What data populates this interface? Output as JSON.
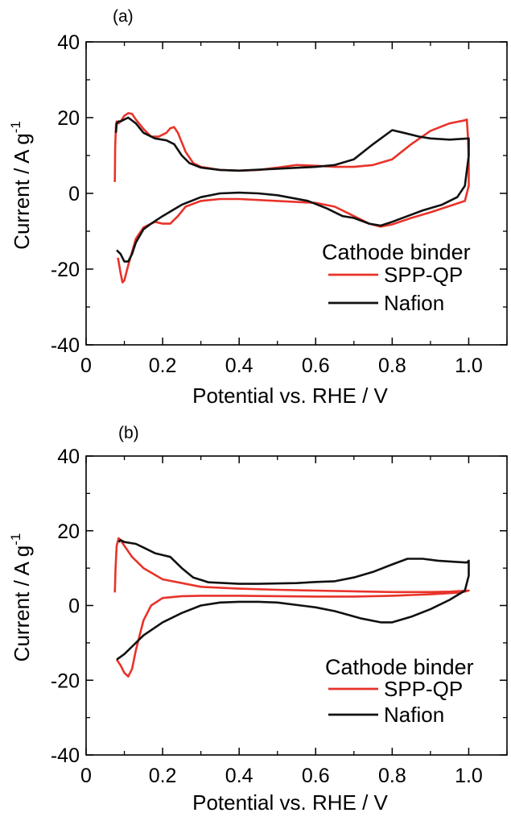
{
  "chart_data": [
    {
      "type": "line",
      "panel_label": "(a)",
      "xlabel": "Potential vs. RHE / V",
      "ylabel": "Current / A g",
      "ylabel_superscript": "-1",
      "xlim": [
        0,
        1.1
      ],
      "ylim": [
        -40,
        40
      ],
      "xticks": [
        0,
        0.2,
        0.4,
        0.6,
        0.8,
        1.0
      ],
      "xtick_labels": [
        "0",
        "0.2",
        "0.4",
        "0.6",
        "0.8",
        "1.0"
      ],
      "yticks": [
        -40,
        -20,
        0,
        20,
        40
      ],
      "ytick_labels": [
        "-40",
        "-20",
        "0",
        "20",
        "40"
      ],
      "grid": false,
      "legend": {
        "title": "Cathode binder",
        "position": "bottom-right"
      },
      "series": [
        {
          "name": "SPP-QP",
          "color": "#e8332a",
          "points": [
            [
              0.075,
              3
            ],
            [
              0.076,
              12
            ],
            [
              0.078,
              18
            ],
            [
              0.08,
              19
            ],
            [
              0.085,
              18.5
            ],
            [
              0.09,
              19
            ],
            [
              0.1,
              20.5
            ],
            [
              0.11,
              21.2
            ],
            [
              0.12,
              21
            ],
            [
              0.13,
              19.5
            ],
            [
              0.15,
              17
            ],
            [
              0.17,
              15
            ],
            [
              0.19,
              15
            ],
            [
              0.21,
              16
            ],
            [
              0.22,
              17.2
            ],
            [
              0.23,
              17.5
            ],
            [
              0.24,
              16
            ],
            [
              0.26,
              11
            ],
            [
              0.28,
              8
            ],
            [
              0.3,
              7
            ],
            [
              0.35,
              6.2
            ],
            [
              0.4,
              6
            ],
            [
              0.45,
              6.2
            ],
            [
              0.5,
              6.8
            ],
            [
              0.55,
              7.5
            ],
            [
              0.6,
              7.3
            ],
            [
              0.65,
              7
            ],
            [
              0.7,
              7
            ],
            [
              0.75,
              7.5
            ],
            [
              0.8,
              9
            ],
            [
              0.85,
              13
            ],
            [
              0.9,
              16.5
            ],
            [
              0.95,
              18.5
            ],
            [
              0.99,
              19.3
            ],
            [
              0.995,
              19.5
            ],
            [
              0.998,
              15
            ],
            [
              1.0,
              8
            ],
            [
              1.0,
              2
            ],
            [
              0.99,
              -2
            ],
            [
              0.96,
              -3
            ],
            [
              0.9,
              -5
            ],
            [
              0.85,
              -6.5
            ],
            [
              0.8,
              -8.2
            ],
            [
              0.77,
              -8.8
            ],
            [
              0.74,
              -8
            ],
            [
              0.7,
              -6
            ],
            [
              0.65,
              -3.5
            ],
            [
              0.6,
              -2.5
            ],
            [
              0.5,
              -2
            ],
            [
              0.4,
              -1.5
            ],
            [
              0.35,
              -1.5
            ],
            [
              0.3,
              -2
            ],
            [
              0.26,
              -3.5
            ],
            [
              0.24,
              -6
            ],
            [
              0.22,
              -8
            ],
            [
              0.2,
              -8
            ],
            [
              0.18,
              -7.5
            ],
            [
              0.15,
              -9
            ],
            [
              0.13,
              -12
            ],
            [
              0.11,
              -19
            ],
            [
              0.1,
              -23
            ],
            [
              0.095,
              -23.5
            ],
            [
              0.09,
              -21
            ],
            [
              0.085,
              -18
            ],
            [
              0.083,
              -17
            ]
          ]
        },
        {
          "name": "Nafion",
          "color": "#111111",
          "points": [
            [
              0.078,
              16
            ],
            [
              0.08,
              18.5
            ],
            [
              0.085,
              19
            ],
            [
              0.09,
              19
            ],
            [
              0.1,
              19.5
            ],
            [
              0.11,
              20
            ],
            [
              0.13,
              18.5
            ],
            [
              0.15,
              16
            ],
            [
              0.18,
              14.5
            ],
            [
              0.21,
              14
            ],
            [
              0.23,
              13
            ],
            [
              0.25,
              10
            ],
            [
              0.27,
              8
            ],
            [
              0.3,
              6.8
            ],
            [
              0.35,
              6.2
            ],
            [
              0.4,
              6
            ],
            [
              0.5,
              6.5
            ],
            [
              0.6,
              7
            ],
            [
              0.65,
              7.5
            ],
            [
              0.7,
              9
            ],
            [
              0.75,
              13
            ],
            [
              0.8,
              16.7
            ],
            [
              0.83,
              16
            ],
            [
              0.87,
              15
            ],
            [
              0.9,
              14.5
            ],
            [
              0.95,
              14.2
            ],
            [
              1.0,
              14.5
            ],
            [
              1.0,
              10
            ],
            [
              0.99,
              2
            ],
            [
              0.97,
              -1
            ],
            [
              0.93,
              -3
            ],
            [
              0.88,
              -4.5
            ],
            [
              0.84,
              -6
            ],
            [
              0.8,
              -7.5
            ],
            [
              0.77,
              -8.5
            ],
            [
              0.74,
              -8
            ],
            [
              0.7,
              -6.5
            ],
            [
              0.67,
              -6
            ],
            [
              0.63,
              -4
            ],
            [
              0.58,
              -2
            ],
            [
              0.5,
              -0.5
            ],
            [
              0.45,
              0
            ],
            [
              0.4,
              0.2
            ],
            [
              0.35,
              0
            ],
            [
              0.3,
              -1
            ],
            [
              0.25,
              -3
            ],
            [
              0.2,
              -6
            ],
            [
              0.17,
              -8
            ],
            [
              0.15,
              -9.5
            ],
            [
              0.13,
              -13
            ],
            [
              0.12,
              -16
            ],
            [
              0.11,
              -18
            ],
            [
              0.1,
              -18
            ],
            [
              0.09,
              -16
            ],
            [
              0.08,
              -15
            ]
          ]
        }
      ]
    },
    {
      "type": "line",
      "panel_label": "(b)",
      "xlabel": "Potential vs. RHE / V",
      "ylabel": "Current / A g",
      "ylabel_superscript": "-1",
      "xlim": [
        0,
        1.1
      ],
      "ylim": [
        -40,
        40
      ],
      "xticks": [
        0,
        0.2,
        0.4,
        0.6,
        0.8,
        1.0
      ],
      "xtick_labels": [
        "0",
        "0.2",
        "0.4",
        "0.6",
        "0.8",
        "1.0"
      ],
      "yticks": [
        -40,
        -20,
        0,
        20,
        40
      ],
      "ytick_labels": [
        "-40",
        "-20",
        "0",
        "20",
        "40"
      ],
      "grid": false,
      "legend": {
        "title": "Cathode binder",
        "position": "bottom-right"
      },
      "series": [
        {
          "name": "SPP-QP",
          "color": "#e8332a",
          "points": [
            [
              0.075,
              3.5
            ],
            [
              0.077,
              10
            ],
            [
              0.08,
              16
            ],
            [
              0.085,
              18
            ],
            [
              0.09,
              17.5
            ],
            [
              0.1,
              16
            ],
            [
              0.12,
              13
            ],
            [
              0.15,
              10
            ],
            [
              0.2,
              7
            ],
            [
              0.3,
              5
            ],
            [
              0.4,
              4.5
            ],
            [
              0.5,
              4.2
            ],
            [
              0.6,
              4
            ],
            [
              0.7,
              3.8
            ],
            [
              0.8,
              3.6
            ],
            [
              0.9,
              3.6
            ],
            [
              0.95,
              3.7
            ],
            [
              1.0,
              4
            ],
            [
              0.98,
              3.5
            ],
            [
              0.9,
              3
            ],
            [
              0.8,
              2.6
            ],
            [
              0.7,
              2.4
            ],
            [
              0.6,
              2.4
            ],
            [
              0.5,
              2.5
            ],
            [
              0.4,
              2.6
            ],
            [
              0.3,
              2.6
            ],
            [
              0.25,
              2.5
            ],
            [
              0.2,
              2
            ],
            [
              0.17,
              0
            ],
            [
              0.15,
              -4
            ],
            [
              0.13,
              -12
            ],
            [
              0.12,
              -17
            ],
            [
              0.11,
              -19
            ],
            [
              0.1,
              -18
            ],
            [
              0.09,
              -16
            ],
            [
              0.08,
              -14.5
            ]
          ]
        },
        {
          "name": "Nafion",
          "color": "#111111",
          "points": [
            [
              0.085,
              17
            ],
            [
              0.09,
              17.5
            ],
            [
              0.1,
              17
            ],
            [
              0.13,
              16.5
            ],
            [
              0.15,
              15.5
            ],
            [
              0.18,
              14
            ],
            [
              0.2,
              13.5
            ],
            [
              0.22,
              13
            ],
            [
              0.25,
              10
            ],
            [
              0.28,
              7.5
            ],
            [
              0.32,
              6.2
            ],
            [
              0.4,
              5.8
            ],
            [
              0.45,
              5.8
            ],
            [
              0.55,
              6
            ],
            [
              0.6,
              6.3
            ],
            [
              0.65,
              6.5
            ],
            [
              0.7,
              7.5
            ],
            [
              0.75,
              9
            ],
            [
              0.8,
              11
            ],
            [
              0.84,
              12.5
            ],
            [
              0.88,
              12.5
            ],
            [
              0.92,
              12
            ],
            [
              0.96,
              11.7
            ],
            [
              0.995,
              11.5
            ],
            [
              1.0,
              12
            ],
            [
              1.0,
              8
            ],
            [
              0.99,
              4
            ],
            [
              0.95,
              1.5
            ],
            [
              0.9,
              -1
            ],
            [
              0.85,
              -3
            ],
            [
              0.8,
              -4.5
            ],
            [
              0.77,
              -4.5
            ],
            [
              0.72,
              -3.5
            ],
            [
              0.65,
              -1.5
            ],
            [
              0.6,
              -0.5
            ],
            [
              0.5,
              0.8
            ],
            [
              0.45,
              1
            ],
            [
              0.4,
              1
            ],
            [
              0.35,
              0.8
            ],
            [
              0.3,
              0
            ],
            [
              0.25,
              -2
            ],
            [
              0.2,
              -4.5
            ],
            [
              0.15,
              -8
            ],
            [
              0.12,
              -11
            ],
            [
              0.1,
              -13
            ],
            [
              0.08,
              -14.5
            ]
          ]
        }
      ]
    }
  ]
}
